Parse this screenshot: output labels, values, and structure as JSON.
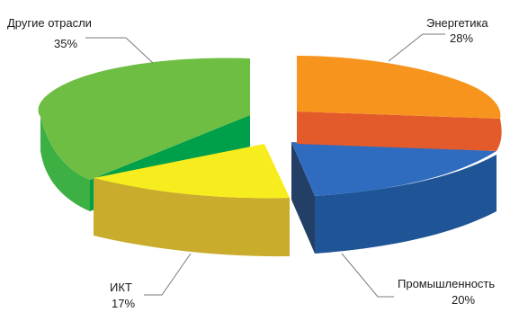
{
  "chart_data": {
    "type": "pie",
    "style": "3d-exploded",
    "slices": [
      {
        "name": "Энергетика",
        "label": "28%",
        "value": 28,
        "top": "#f7941d",
        "side": "#e35a2b"
      },
      {
        "name": "Промышленность",
        "label": "20%",
        "value": 20,
        "top": "#2f6cc0",
        "side": "#1f5596",
        "inner": "#243f66"
      },
      {
        "name": "ИКТ",
        "label": "17%",
        "value": 17,
        "top": "#f7ec1d",
        "side": "#c9ac2c"
      },
      {
        "name": "Другие отрасли",
        "label": "35%",
        "value": 35,
        "top": "#6fbe44",
        "side": "#3cb043",
        "inner": "#00a04a"
      }
    ]
  }
}
